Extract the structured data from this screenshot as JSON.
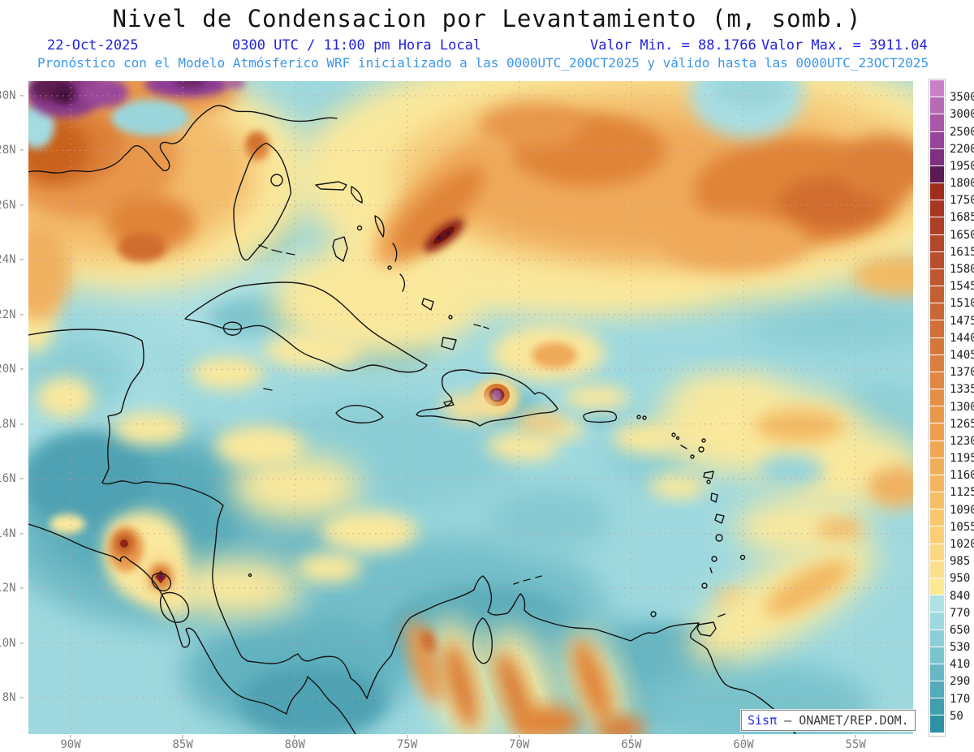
{
  "header": {
    "title": "Nivel de Condensacion por Levantamiento (m, somb.)",
    "date": "22-Oct-2025",
    "time": "0300 UTC / 11:00 pm Hora Local",
    "valor_min": "Valor Min. = 88.1766",
    "valor_max": "Valor Max. = 3911.04",
    "forecast": "Pronóstico con el Modelo Atmósferico WRF inicializado a las 0000UTC_20OCT2025 y válido hasta las  0000UTC_23OCT2025"
  },
  "map": {
    "lat_labels": [
      "30N",
      "28N",
      "26N",
      "24N",
      "22N",
      "20N",
      "18N",
      "16N",
      "14N",
      "12N",
      "10N",
      "8N"
    ],
    "lon_labels": [
      "90W",
      "85W",
      "80W",
      "75W",
      "70W",
      "65W",
      "60W",
      "55W"
    ]
  },
  "colorbar": {
    "labels": [
      3500,
      3000,
      2500,
      2200,
      1950,
      1800,
      1750,
      1685,
      1650,
      1615,
      1580,
      1545,
      1510,
      1475,
      1440,
      1405,
      1370,
      1335,
      1300,
      1265,
      1230,
      1195,
      1160,
      1125,
      1090,
      1055,
      1020,
      985,
      950,
      840,
      770,
      650,
      530,
      410,
      290,
      170,
      50
    ],
    "colors": [
      "#C881C8",
      "#B76BB7",
      "#A958A9",
      "#97449A",
      "#7D3181",
      "#5B1A53",
      "#9E2D1D",
      "#A63722",
      "#AC3F26",
      "#B24729",
      "#B84F2C",
      "#BE572F",
      "#C45F32",
      "#CA6735",
      "#D06F38",
      "#D5773B",
      "#DA7F3F",
      "#DF8743",
      "#E48F47",
      "#E8974B",
      "#EC9F4F",
      "#EFA754",
      "#F2AF59",
      "#F4B75F",
      "#F6BF66",
      "#F8C76E",
      "#FACF78",
      "#FBD782",
      "#FCDF8C",
      "#FDE896",
      "#AFE1E5",
      "#9FD9DF",
      "#8DCFD7",
      "#7AC4CE",
      "#67B8C5",
      "#54ABBA",
      "#419EAF",
      "#2D90A3"
    ]
  },
  "watermark": {
    "brand": "Sisπ",
    "rest": "– ONAMET/REP.DOM."
  },
  "colors": {
    "title_text": "#141414",
    "header_blue": "#2222DD",
    "forecast_blue": "#3B96E8",
    "axis_gray": "#7b7b7b",
    "sea_base": "#9FD9DF"
  }
}
